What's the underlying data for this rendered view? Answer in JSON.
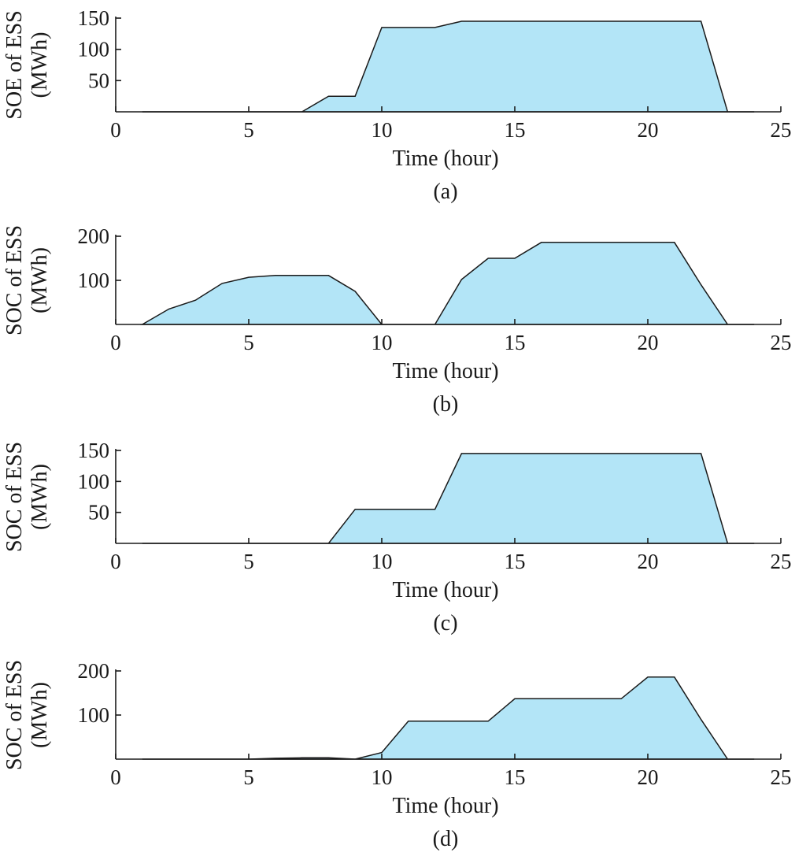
{
  "colors": {
    "area_fill": "#b3e5f7",
    "line": "#1a1a1a"
  },
  "chart_data": [
    {
      "type": "area",
      "caption": "(a)",
      "xlabel": "Time (hour)",
      "ylabel_lines": [
        "SOE of ESS",
        "(MWh)"
      ],
      "xlim": [
        0,
        25
      ],
      "ylim": [
        0,
        150
      ],
      "xticks": [
        0,
        5,
        10,
        15,
        20,
        25
      ],
      "yticks": [
        50,
        100,
        150
      ],
      "x": [
        1,
        2,
        3,
        4,
        5,
        6,
        7,
        8,
        9,
        10,
        11,
        12,
        13,
        14,
        15,
        16,
        17,
        18,
        19,
        20,
        21,
        22,
        23,
        24
      ],
      "values": [
        0,
        0,
        0,
        0,
        0,
        0,
        0,
        25,
        25,
        135,
        135,
        135,
        145,
        145,
        145,
        145,
        145,
        145,
        145,
        145,
        145,
        145,
        0,
        0
      ]
    },
    {
      "type": "area",
      "caption": "(b)",
      "xlabel": "Time (hour)",
      "ylabel_lines": [
        "SOC of ESS",
        "(MWh)"
      ],
      "xlim": [
        0,
        25
      ],
      "ylim": [
        0,
        200
      ],
      "xticks": [
        0,
        5,
        10,
        15,
        20,
        25
      ],
      "yticks": [
        100,
        200
      ],
      "x": [
        1,
        2,
        3,
        4,
        5,
        6,
        7,
        8,
        9,
        10,
        11,
        12,
        13,
        14,
        15,
        16,
        17,
        18,
        19,
        20,
        21,
        22,
        23,
        24
      ],
      "values": [
        0,
        35,
        55,
        93,
        107,
        111,
        111,
        111,
        75,
        0,
        0,
        0,
        102,
        150,
        150,
        186,
        186,
        186,
        186,
        186,
        186,
        90,
        0,
        0
      ]
    },
    {
      "type": "area",
      "caption": "(c)",
      "xlabel": "Time (hour)",
      "ylabel_lines": [
        "SOC of ESS",
        "(MWh)"
      ],
      "xlim": [
        0,
        25
      ],
      "ylim": [
        0,
        150
      ],
      "xticks": [
        0,
        5,
        10,
        15,
        20,
        25
      ],
      "yticks": [
        50,
        100,
        150
      ],
      "x": [
        1,
        2,
        3,
        4,
        5,
        6,
        7,
        8,
        9,
        10,
        11,
        12,
        13,
        14,
        15,
        16,
        17,
        18,
        19,
        20,
        21,
        22,
        23,
        24
      ],
      "values": [
        0,
        0,
        0,
        0,
        0,
        0,
        0,
        0,
        55,
        55,
        55,
        55,
        145,
        145,
        145,
        145,
        145,
        145,
        145,
        145,
        145,
        145,
        0,
        0
      ]
    },
    {
      "type": "area",
      "caption": "(d)",
      "xlabel": "Time (hour)",
      "ylabel_lines": [
        "SOC of ESS",
        "(MWh)"
      ],
      "xlim": [
        0,
        25
      ],
      "ylim": [
        0,
        200
      ],
      "xticks": [
        0,
        5,
        10,
        15,
        20,
        25
      ],
      "yticks": [
        100,
        200
      ],
      "x": [
        1,
        2,
        3,
        4,
        5,
        6,
        7,
        8,
        9,
        10,
        11,
        12,
        13,
        14,
        15,
        16,
        17,
        18,
        19,
        20,
        21,
        22,
        23,
        24
      ],
      "values": [
        0,
        0,
        0,
        0,
        0,
        2,
        3,
        3,
        0,
        15,
        86,
        86,
        86,
        86,
        137,
        137,
        137,
        137,
        137,
        186,
        186,
        90,
        0,
        0
      ]
    }
  ]
}
